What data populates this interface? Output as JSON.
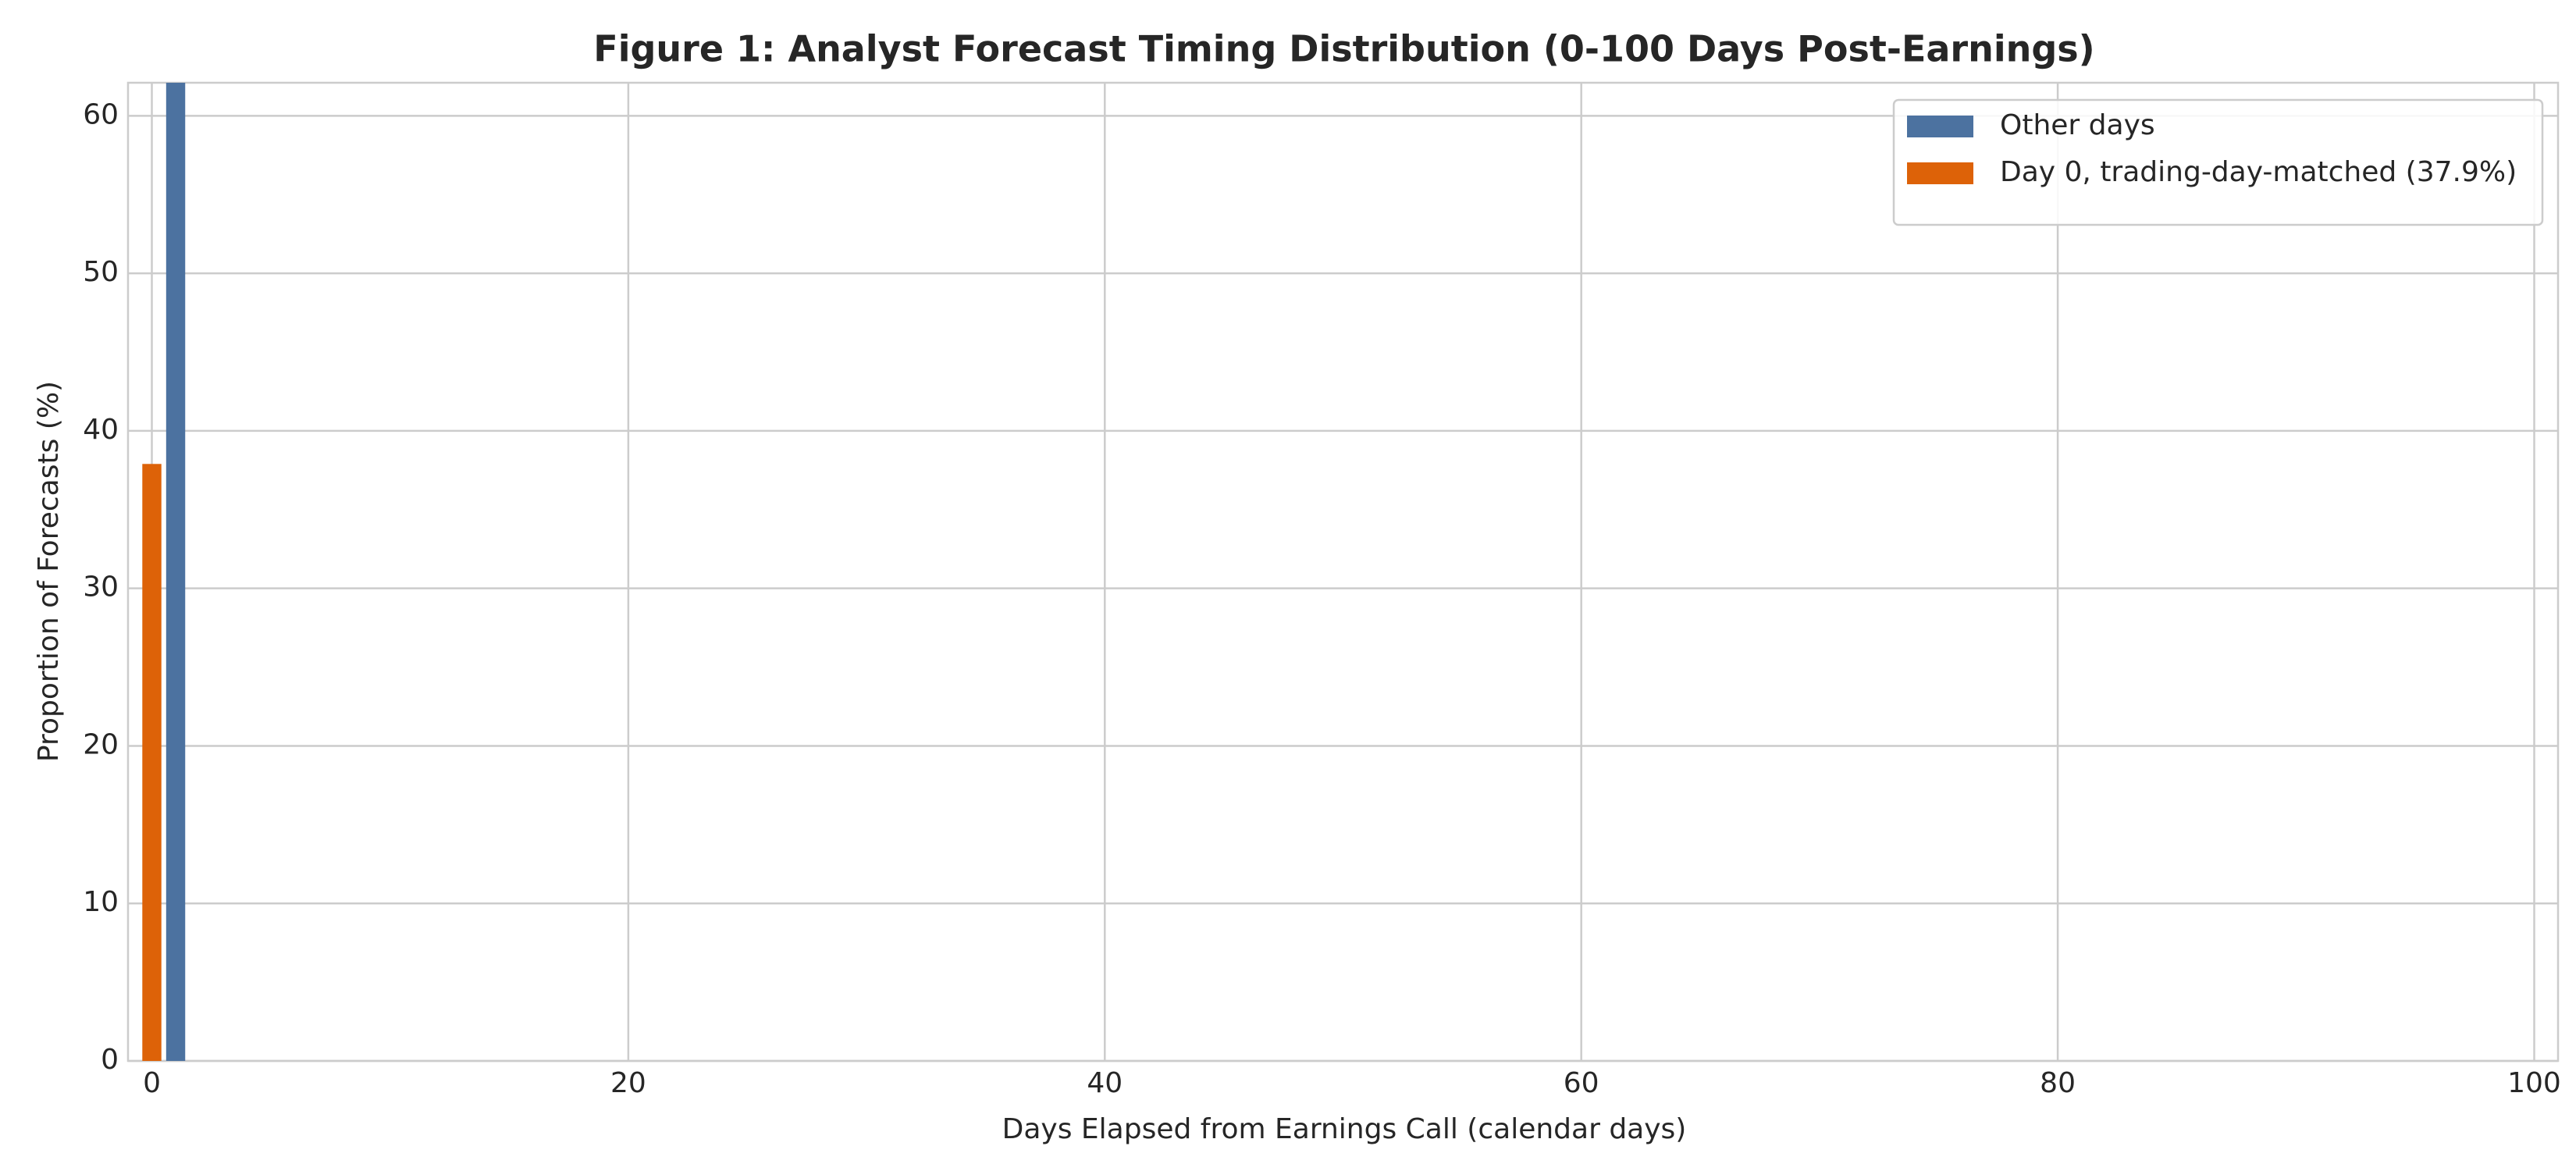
{
  "chart_data": {
    "type": "bar",
    "title": "Figure 1: Analyst Forecast Timing Distribution (0-100 Days Post-Earnings)",
    "x_label": "Days Elapsed from Earnings Call (calendar days)",
    "y_label": "Proportion of Forecasts (%)",
    "series": [
      {
        "name": "Other days",
        "color": "#4c72a0",
        "x": [
          1
        ],
        "values": [
          62.1
        ]
      },
      {
        "name": "Day 0, trading-day-matched (37.9%)",
        "color": "#dd6208",
        "x": [
          0
        ],
        "values": [
          37.9
        ]
      }
    ],
    "xlim": [
      -1,
      101
    ],
    "xticks": [
      0,
      20,
      40,
      60,
      80,
      100
    ],
    "ylim": [
      0,
      62.1
    ],
    "yticks": [
      0,
      10,
      20,
      30,
      40,
      50,
      60
    ],
    "grid": true,
    "legend": "upper right"
  }
}
